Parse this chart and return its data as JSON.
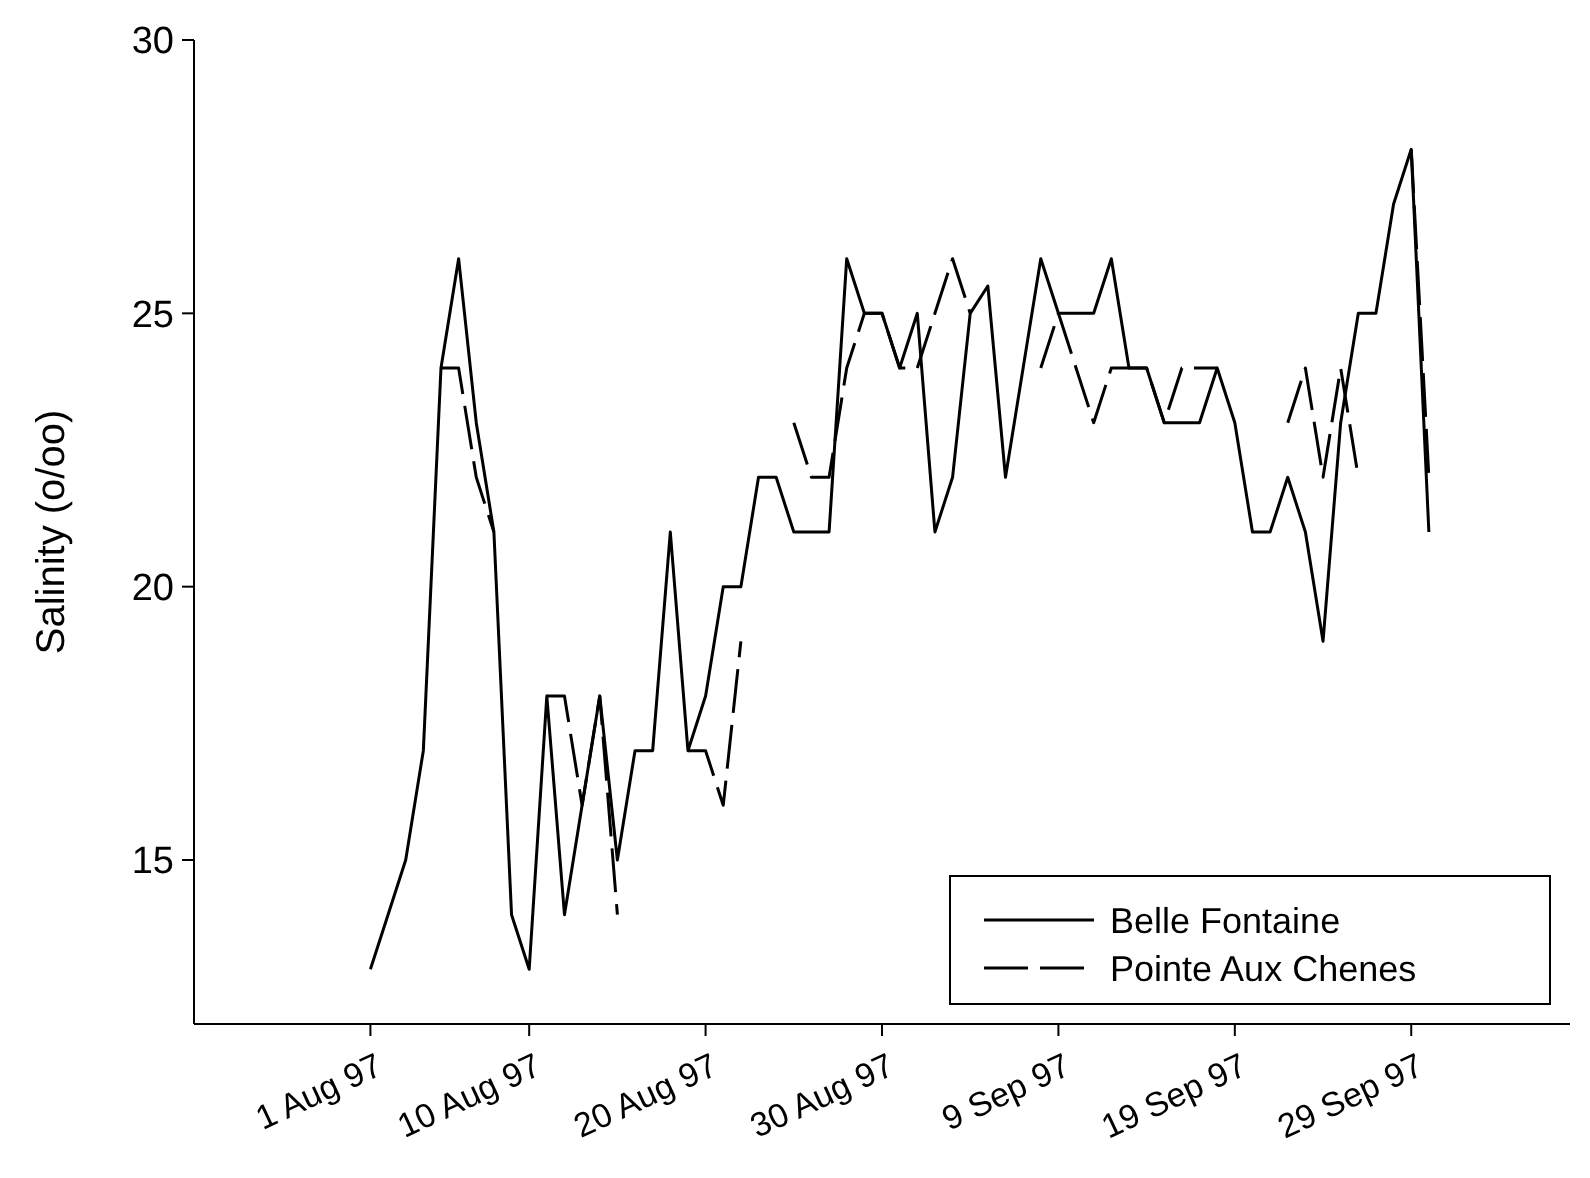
{
  "chart_data": {
    "type": "line",
    "ylabel": "Salinity (o/oo)",
    "x": [
      "1997-08-01",
      "1997-08-02",
      "1997-08-03",
      "1997-08-04",
      "1997-08-05",
      "1997-08-06",
      "1997-08-07",
      "1997-08-08",
      "1997-08-09",
      "1997-08-10",
      "1997-08-11",
      "1997-08-12",
      "1997-08-13",
      "1997-08-14",
      "1997-08-15",
      "1997-08-16",
      "1997-08-17",
      "1997-08-18",
      "1997-08-19",
      "1997-08-20",
      "1997-08-21",
      "1997-08-22",
      "1997-08-23",
      "1997-08-24",
      "1997-08-25",
      "1997-08-26",
      "1997-08-27",
      "1997-08-28",
      "1997-08-29",
      "1997-08-30",
      "1997-08-31",
      "1997-09-01",
      "1997-09-02",
      "1997-09-03",
      "1997-09-04",
      "1997-09-05",
      "1997-09-06",
      "1997-09-07",
      "1997-09-08",
      "1997-09-09",
      "1997-09-10",
      "1997-09-11",
      "1997-09-12",
      "1997-09-13",
      "1997-09-14",
      "1997-09-15",
      "1997-09-16",
      "1997-09-17",
      "1997-09-18",
      "1997-09-19",
      "1997-09-20",
      "1997-09-21",
      "1997-09-22",
      "1997-09-23",
      "1997-09-24",
      "1997-09-25",
      "1997-09-26",
      "1997-09-27",
      "1997-09-28",
      "1997-09-29",
      "1997-09-30"
    ],
    "series": [
      {
        "name": "Belle Fontaine",
        "color": "#000000",
        "line_style": "solid",
        "values": [
          13,
          14,
          15,
          17,
          24,
          26,
          23,
          21,
          14,
          13,
          18,
          14,
          16,
          18,
          15,
          17,
          17,
          21,
          17,
          18,
          20,
          20,
          22,
          22,
          21,
          21,
          21,
          26,
          25,
          25,
          24,
          25,
          21,
          22,
          25,
          25.5,
          22,
          24,
          26,
          25,
          25,
          25,
          26,
          24,
          24,
          23,
          23,
          23,
          24,
          23,
          21,
          21,
          22,
          21,
          19,
          23,
          25,
          25,
          27,
          28,
          21
        ]
      },
      {
        "name": "Pointe Aux Chenes",
        "color": "#000000",
        "line_style": "dashed",
        "values": [
          null,
          null,
          null,
          null,
          24,
          24,
          22,
          21,
          null,
          null,
          18,
          18,
          16,
          18,
          14,
          null,
          null,
          null,
          17,
          17,
          16,
          19,
          null,
          null,
          23,
          22,
          22,
          24,
          25,
          25,
          24,
          24,
          25,
          26,
          25,
          null,
          null,
          null,
          24,
          25,
          24,
          23,
          24,
          24,
          24,
          23,
          24,
          24,
          24,
          null,
          null,
          null,
          23,
          24,
          22,
          24,
          22,
          null,
          null,
          28,
          22
        ]
      }
    ],
    "xlim": [
      "1997-07-22",
      "1997-10-08"
    ],
    "xticks": [
      {
        "value": "1997-08-01",
        "label": "1 Aug 97"
      },
      {
        "value": "1997-08-10",
        "label": "10 Aug 97"
      },
      {
        "value": "1997-08-20",
        "label": "20 Aug 97"
      },
      {
        "value": "1997-08-30",
        "label": "30 Aug 97"
      },
      {
        "value": "1997-09-09",
        "label": "9 Sep 97"
      },
      {
        "value": "1997-09-19",
        "label": "19 Sep 97"
      },
      {
        "value": "1997-09-29",
        "label": "29 Sep 97"
      }
    ],
    "ylim": [
      12,
      30
    ],
    "yticks": [
      15,
      20,
      25,
      30
    ],
    "grid": false,
    "legend": "bottom right"
  }
}
